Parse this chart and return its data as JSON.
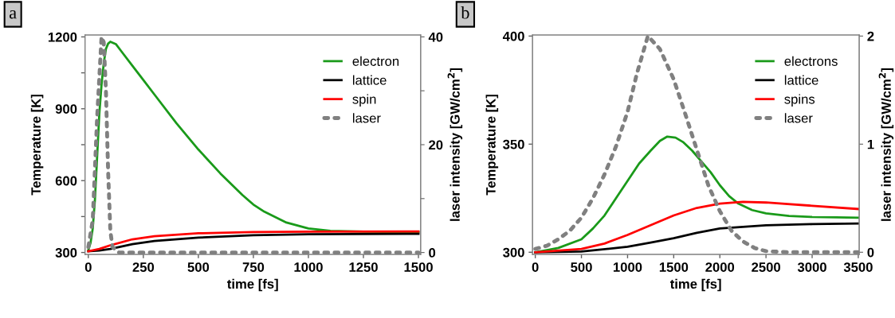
{
  "chart_data": [
    {
      "type": "line",
      "xlabel": "time [fs]",
      "ylabel": "Temperature [K]",
      "y2label": "laser intensity [GW/cm$^{2}$]",
      "annotations": [
        "a"
      ],
      "xlim": [
        -15,
        1510
      ],
      "xticks": [
        0,
        250,
        500,
        750,
        1000,
        1250,
        1500
      ],
      "ylim": [
        292,
        1208
      ],
      "yticks": [
        300,
        {
          "value": 450,
          "label": null
        },
        600,
        {
          "value": 750,
          "label": null
        },
        900,
        {
          "value": 1050,
          "label": null
        },
        1200
      ],
      "y2lim": [
        -0.35,
        40.35
      ],
      "y2ticks": [
        0,
        {
          "value": 10,
          "label": null
        },
        20,
        {
          "value": 30,
          "label": null
        },
        40
      ],
      "legend": "top right",
      "grid": false,
      "series": [
        {
          "name": "electron",
          "color": "#1a9a1a",
          "line_style": "solid",
          "x": [
            0,
            10,
            20,
            30,
            40,
            50,
            60,
            70,
            80,
            90,
            100,
            125,
            150,
            200,
            250,
            300,
            400,
            500,
            600,
            700,
            750,
            800,
            900,
            1000,
            1100,
            1250,
            1500
          ],
          "values": [
            310,
            340,
            400,
            520,
            700,
            880,
            1000,
            1090,
            1150,
            1172,
            1180,
            1170,
            1140,
            1080,
            1020,
            960,
            840,
            730,
            630,
            540,
            500,
            470,
            425,
            400,
            390,
            387,
            385
          ]
        },
        {
          "name": "lattice",
          "color": "#000000",
          "line_style": "solid",
          "x": [
            0,
            50,
            100,
            200,
            300,
            500,
            750,
            1000,
            1500
          ],
          "values": [
            305,
            308,
            315,
            335,
            348,
            362,
            372,
            376,
            378
          ]
        },
        {
          "name": "spin",
          "color": "#ff0000",
          "line_style": "solid",
          "x": [
            0,
            50,
            100,
            200,
            300,
            500,
            750,
            1000,
            1500
          ],
          "values": [
            305,
            315,
            330,
            355,
            368,
            380,
            385,
            387,
            388
          ]
        },
        {
          "name": "laser",
          "color": "#808080",
          "line_style": "dotted",
          "axis": "y2",
          "x": [
            0,
            20,
            40,
            60,
            70,
            80,
            90,
            100,
            110,
            140,
            1500
          ],
          "values": [
            1,
            6,
            25,
            40,
            39,
            30,
            15,
            4,
            1,
            0,
            0
          ]
        }
      ]
    },
    {
      "type": "line",
      "xlabel": "time [fs]",
      "ylabel": "Temperature [K]",
      "y2label": "laser intensity [GW/cm$^{2}$]",
      "annotations": [
        "b"
      ],
      "xlim": [
        -30,
        3510
      ],
      "xticks": [
        0,
        500,
        1000,
        1500,
        2000,
        2500,
        3000,
        3500
      ],
      "ylim": [
        299,
        400.5
      ],
      "yticks": [
        300,
        350,
        400
      ],
      "y2lim": [
        -0.02,
        2.01
      ],
      "y2ticks": [
        0,
        1,
        2
      ],
      "legend": "top right",
      "grid": false,
      "series": [
        {
          "name": "electrons",
          "color": "#1a9a1a",
          "line_style": "solid",
          "x": [
            0,
            250,
            500,
            625,
            750,
            875,
            1000,
            1125,
            1250,
            1350,
            1430,
            1520,
            1600,
            1700,
            1800,
            1900,
            2000,
            2100,
            2200,
            2350,
            2500,
            2750,
            3000,
            3500
          ],
          "values": [
            300,
            302,
            306,
            311,
            317,
            325,
            333,
            341,
            347,
            351.5,
            353.5,
            353,
            351,
            347,
            342,
            337,
            331,
            326,
            322.5,
            319.5,
            318,
            316.8,
            316.3,
            316
          ]
        },
        {
          "name": "lattice",
          "color": "#000000",
          "line_style": "solid",
          "x": [
            0,
            500,
            1000,
            1250,
            1500,
            1750,
            2000,
            2500,
            3000,
            3500
          ],
          "values": [
            300,
            300.3,
            302.5,
            304.5,
            306.5,
            309,
            311,
            312.5,
            313,
            313.3
          ]
        },
        {
          "name": "spins",
          "color": "#ff0000",
          "line_style": "solid",
          "x": [
            0,
            500,
            750,
            1000,
            1250,
            1500,
            1750,
            2000,
            2250,
            2500,
            3000,
            3500
          ],
          "values": [
            300,
            301.5,
            304,
            308,
            312.5,
            317,
            320.5,
            322.5,
            323.3,
            323,
            321.5,
            320
          ]
        },
        {
          "name": "laser",
          "color": "#808080",
          "line_style": "dotted",
          "axis": "y2",
          "x": [
            0,
            125,
            250,
            375,
            500,
            625,
            750,
            875,
            1000,
            1100,
            1220,
            1350,
            1500,
            1625,
            1750,
            1875,
            2000,
            2125,
            2250,
            2375,
            2500,
            2750,
            3000,
            3500
          ],
          "values": [
            0.03,
            0.06,
            0.12,
            0.2,
            0.32,
            0.5,
            0.72,
            0.98,
            1.3,
            1.65,
            2,
            1.88,
            1.6,
            1.28,
            0.95,
            0.62,
            0.38,
            0.2,
            0.1,
            0.04,
            0.01,
            0,
            0,
            0
          ]
        }
      ]
    }
  ]
}
